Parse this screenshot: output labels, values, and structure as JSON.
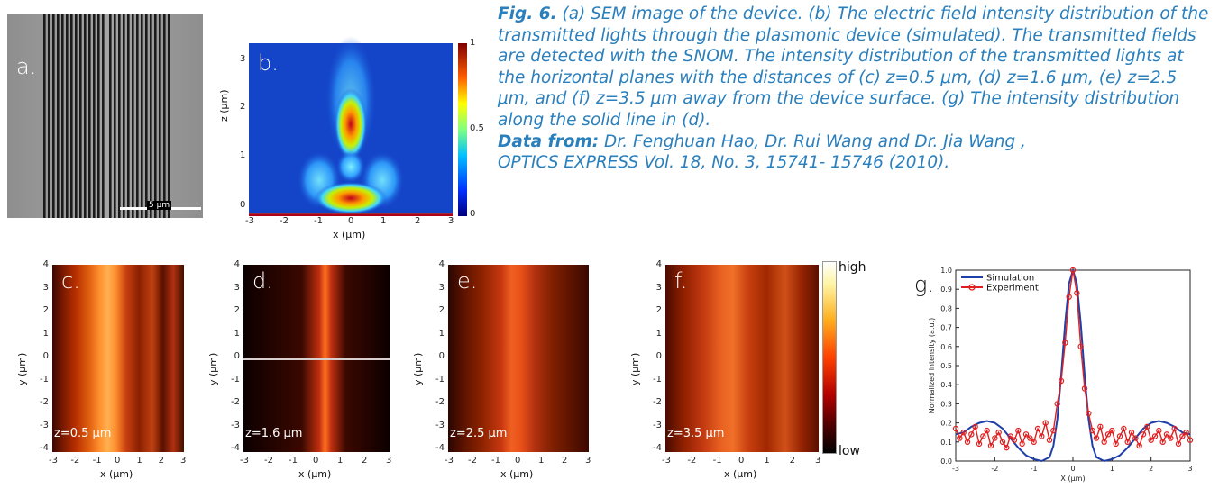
{
  "caption": {
    "fig_label": "Fig. 6.",
    "text": " (a) SEM image of the device. (b) The electric field intensity distribution of the transmitted lights through the plasmonic device (simulated). The transmitted fields are detected with the SNOM. The intensity distribution of the transmitted lights at the horizontal planes with the distances of (c) z=0.5 μm, (d) z=1.6 μm, (e) z=2.5 μm, and (f) z=3.5 μm away from the device surface. (g) The intensity distribution along the solid line in (d).",
    "data_label": "Data from:",
    "data_text": " Dr. Fenghuan Hao, Dr. Rui Wang and Dr. Jia Wang ,",
    "journal": "OPTICS EXPRESS Vol. 18, No. 3, 15741- 15746 (2010)."
  },
  "panel_a": {
    "letter": "a.",
    "scale_bar": "5 μm"
  },
  "panel_b": {
    "letter": "b.",
    "ylabel": "z (μm)",
    "xlabel": "x (μm)",
    "xticks": [
      "-3",
      "-2",
      "-1",
      "0",
      "1",
      "2",
      "3"
    ],
    "yticks": [
      "0",
      "1",
      "2",
      "3"
    ],
    "colorbar_ticks": [
      "1",
      "0.5",
      "0"
    ]
  },
  "maps": [
    {
      "letter": "c.",
      "z_label": "z=0.5 μm"
    },
    {
      "letter": "d.",
      "z_label": "z=1.6 μm"
    },
    {
      "letter": "e.",
      "z_label": "z=2.5 μm"
    },
    {
      "letter": "f.",
      "z_label": "z=3.5 μm"
    }
  ],
  "map_axes": {
    "xlabel": "x (μm)",
    "ylabel": "y (μm)",
    "xticks": [
      "-3",
      "-2",
      "-1",
      "0",
      "1",
      "2",
      "3"
    ],
    "yticks": [
      "4",
      "3",
      "2",
      "1",
      "0",
      "-1",
      "-2",
      "-3",
      "-4"
    ]
  },
  "colorbar": {
    "high": "high",
    "low": "low"
  },
  "chart_data": {
    "type": "line",
    "letter": "g.",
    "xlabel": "X (μm)",
    "ylabel": "Normalized intensity (a.u.)",
    "xlim": [
      -3,
      3
    ],
    "ylim": [
      0,
      1.0
    ],
    "xticks": [
      "-3",
      "-2",
      "-1",
      "0",
      "1",
      "2",
      "3"
    ],
    "yticks": [
      "0.0",
      "0.1",
      "0.2",
      "0.3",
      "0.4",
      "0.5",
      "0.6",
      "0.7",
      "0.8",
      "0.9",
      "1.0"
    ],
    "series": [
      {
        "name": "Simulation",
        "color": "#1f3fa8",
        "x": [
          -3,
          -2.8,
          -2.6,
          -2.4,
          -2.2,
          -2.0,
          -1.8,
          -1.6,
          -1.4,
          -1.2,
          -1.0,
          -0.8,
          -0.6,
          -0.5,
          -0.4,
          -0.3,
          -0.2,
          -0.1,
          0,
          0.1,
          0.2,
          0.3,
          0.4,
          0.5,
          0.6,
          0.8,
          1.0,
          1.2,
          1.4,
          1.6,
          1.8,
          2.0,
          2.2,
          2.4,
          2.6,
          2.8,
          3.0
        ],
        "y": [
          0.14,
          0.15,
          0.18,
          0.2,
          0.21,
          0.2,
          0.17,
          0.12,
          0.07,
          0.03,
          0.01,
          0.0,
          0.02,
          0.08,
          0.22,
          0.45,
          0.72,
          0.93,
          1.0,
          0.93,
          0.72,
          0.45,
          0.22,
          0.08,
          0.02,
          0.0,
          0.01,
          0.03,
          0.07,
          0.12,
          0.17,
          0.2,
          0.21,
          0.2,
          0.18,
          0.15,
          0.14
        ]
      },
      {
        "name": "Experiment",
        "color": "#e02020",
        "x": [
          -3,
          -2.9,
          -2.8,
          -2.7,
          -2.6,
          -2.5,
          -2.4,
          -2.3,
          -2.2,
          -2.1,
          -2.0,
          -1.9,
          -1.8,
          -1.7,
          -1.6,
          -1.5,
          -1.4,
          -1.3,
          -1.2,
          -1.1,
          -1.0,
          -0.9,
          -0.8,
          -0.7,
          -0.6,
          -0.5,
          -0.4,
          -0.3,
          -0.2,
          -0.1,
          0,
          0.1,
          0.2,
          0.3,
          0.4,
          0.5,
          0.6,
          0.7,
          0.8,
          0.9,
          1.0,
          1.1,
          1.2,
          1.3,
          1.4,
          1.5,
          1.6,
          1.7,
          1.8,
          1.9,
          2.0,
          2.1,
          2.2,
          2.3,
          2.4,
          2.5,
          2.6,
          2.7,
          2.8,
          2.9,
          3.0
        ],
        "y": [
          0.17,
          0.12,
          0.15,
          0.1,
          0.14,
          0.18,
          0.09,
          0.13,
          0.16,
          0.08,
          0.12,
          0.15,
          0.1,
          0.07,
          0.13,
          0.11,
          0.16,
          0.09,
          0.14,
          0.12,
          0.1,
          0.17,
          0.13,
          0.2,
          0.11,
          0.16,
          0.3,
          0.42,
          0.62,
          0.86,
          1.0,
          0.88,
          0.6,
          0.38,
          0.25,
          0.16,
          0.12,
          0.18,
          0.1,
          0.14,
          0.16,
          0.09,
          0.13,
          0.17,
          0.1,
          0.15,
          0.12,
          0.08,
          0.14,
          0.18,
          0.11,
          0.13,
          0.16,
          0.1,
          0.14,
          0.12,
          0.17,
          0.09,
          0.13,
          0.15,
          0.11
        ]
      }
    ]
  }
}
